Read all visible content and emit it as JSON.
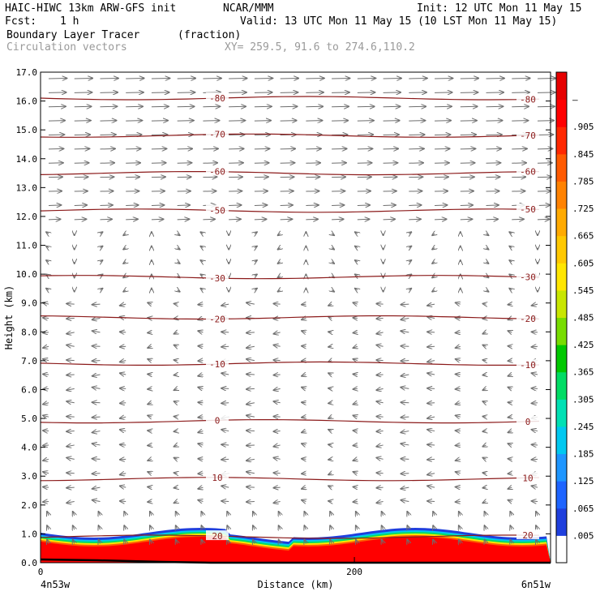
{
  "header": {
    "model": "HAIC-HIWC 13km ARW-GFS init",
    "org": "NCAR/MMM",
    "init": "Init: 12 UTC Mon 11 May 15",
    "fcst_label": "Fcst:",
    "fcst_value": "1 h",
    "valid": "Valid: 13 UTC Mon 11 May 15 (10 LST Mon 11 May 15)",
    "field": "Boundary Layer Tracer",
    "units": "(fraction)",
    "vectors": "Circulation vectors",
    "xy": "XY= 259.5, 91.6 to 274.6,110.2"
  },
  "chart_data": {
    "type": "heatmap",
    "ylabel": "Height (km)",
    "xlabel": "Distance (km)",
    "x_ticks": [
      {
        "value": 0,
        "label": "0"
      },
      {
        "value": 200,
        "label": "200"
      }
    ],
    "x_start_label": "4n53w",
    "x_end_label": "6n51w",
    "xlim": [
      0,
      325
    ],
    "ylim": [
      0,
      17
    ],
    "y_ticks": [
      "0.0",
      "1.0",
      "2.0",
      "3.0",
      "4.0",
      "5.0",
      "6.0",
      "7.0",
      "8.0",
      "9.0",
      "10.0",
      "11.0",
      "12.0",
      "13.0",
      "14.0",
      "15.0",
      "16.0",
      "17.0"
    ],
    "colorbar": {
      "labels": [
        ".005",
        ".065",
        ".125",
        ".185",
        ".245",
        ".305",
        ".365",
        ".425",
        ".485",
        ".545",
        ".605",
        ".665",
        ".725",
        ".785",
        ".845",
        ".905",
        "–"
      ],
      "colors": [
        "#ffffff",
        "#1f3fdd",
        "#1e64ff",
        "#1e96ff",
        "#00c8f0",
        "#00e0b4",
        "#00dc64",
        "#00c800",
        "#78dc00",
        "#c8e600",
        "#ffe600",
        "#ffc800",
        "#ffaa00",
        "#ff8200",
        "#ff5a00",
        "#ff2800",
        "#ff0000",
        "#e60000"
      ]
    },
    "temperature_contours": [
      {
        "label": "-80",
        "height_km": 16.1
      },
      {
        "label": "-70",
        "height_km": 14.8
      },
      {
        "label": "-60",
        "height_km": 13.5
      },
      {
        "label": "-50",
        "height_km": 12.2
      },
      {
        "label": "-30",
        "height_km": 9.9
      },
      {
        "label": "-20",
        "height_km": 8.5
      },
      {
        "label": "-10",
        "height_km": 6.9
      },
      {
        "label": "0",
        "height_km": 4.9
      },
      {
        "label": "10",
        "height_km": 2.9
      },
      {
        "label": "20",
        "height_km": 0.9
      }
    ],
    "grid": false,
    "legend": "right"
  }
}
